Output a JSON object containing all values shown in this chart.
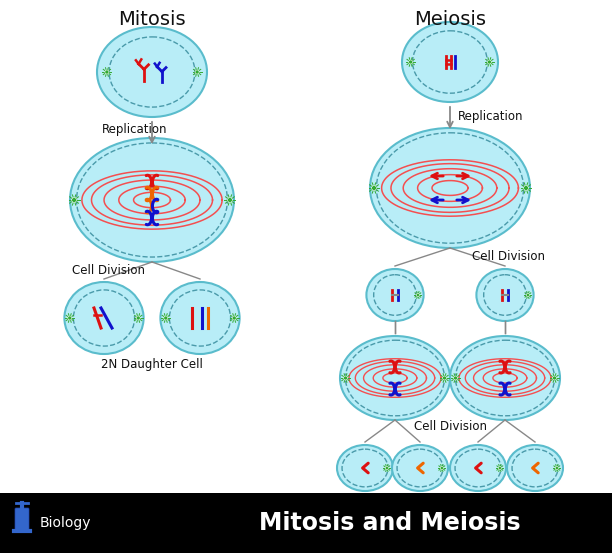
{
  "title_mitosis": "Mitosis",
  "title_meiosis": "Meiosis",
  "footer_text": "Mitosis and Meiosis",
  "footer_label": "Biology",
  "footer_bg": "#000000",
  "bg_color": "#ffffff",
  "cell_color": "#b8edf7",
  "cell_border": "#5abccc",
  "cell_dash": "#4a9aaa",
  "spindle_color": "#ff3333",
  "chrom_red": "#dd1111",
  "chrom_blue": "#1111cc",
  "chrom_orange": "#ee6600",
  "centrosome_color": "#33aa33",
  "arrow_color": "#888888",
  "label_color": "#111111"
}
